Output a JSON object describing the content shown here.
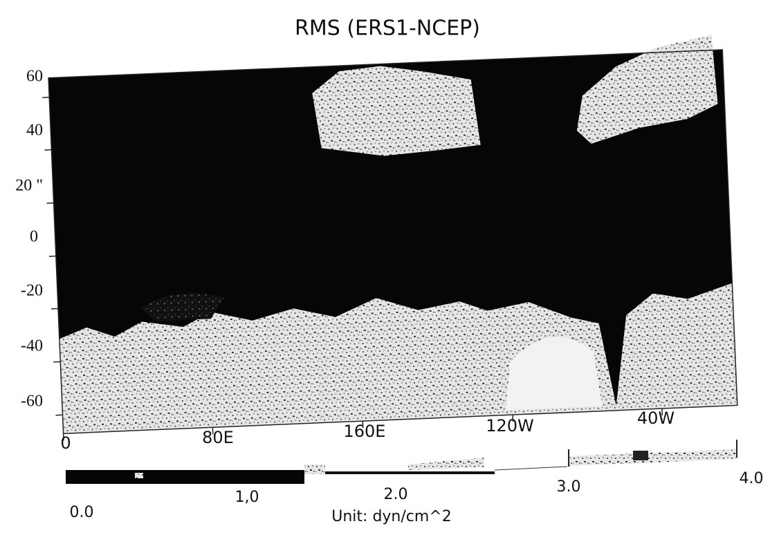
{
  "title": "RMS (ERS1-NCEP)",
  "y_axis": {
    "labels": [
      "60",
      "40",
      "20 \"",
      "0",
      "-20",
      "-40",
      "-60"
    ]
  },
  "x_axis": {
    "labels": [
      "0",
      "80E",
      "160E",
      "120W",
      "40W"
    ]
  },
  "colorbar": {
    "labels": [
      "0.0",
      "1,0",
      "2.0",
      "3.0",
      "4.0"
    ],
    "unit": "Unit: dyn/cm^2"
  }
}
